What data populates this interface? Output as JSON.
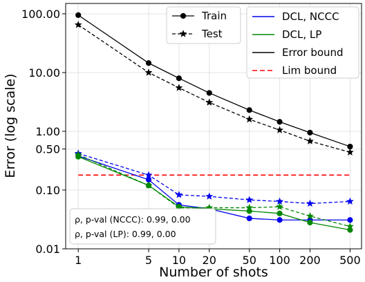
{
  "chart_data": {
    "type": "line",
    "xlabel": "Number of shots",
    "ylabel": "Error (log scale)",
    "x_scale": "log",
    "y_scale": "log",
    "x": [
      1,
      5,
      10,
      20,
      50,
      100,
      200,
      500
    ],
    "x_tick_labels": [
      "1",
      "5",
      "10",
      "20",
      "50",
      "100",
      "200",
      "500"
    ],
    "y_ticks": [
      0.01,
      0.1,
      0.5,
      1,
      10,
      100
    ],
    "y_tick_labels": [
      "0.01",
      "0.10",
      "0.50",
      "1.00",
      "10.00",
      "100.00"
    ],
    "xlim": [
      0.75,
      650
    ],
    "ylim": [
      0.01,
      150
    ],
    "grid": true,
    "series": [
      {
        "key": "err_train",
        "name": "Error bound",
        "color": "#000000",
        "dash": "",
        "marker": "circle",
        "values": [
          95,
          14.5,
          8,
          4.5,
          2.3,
          1.45,
          0.95,
          0.55
        ]
      },
      {
        "key": "err_test",
        "name": "Error bound",
        "color": "#000000",
        "dash": "5,3",
        "marker": "star",
        "values": [
          65,
          10,
          5.5,
          3.1,
          1.6,
          1.05,
          0.68,
          0.44
        ]
      },
      {
        "key": "ncc_train",
        "name": "DCL, NCCC",
        "color": "#0000ee",
        "dash": "",
        "marker": "circle",
        "values": [
          0.38,
          0.15,
          0.056,
          0.048,
          0.033,
          0.031,
          0.031,
          0.031
        ]
      },
      {
        "key": "ncc_test",
        "name": "DCL, NCCC",
        "color": "#0000ee",
        "dash": "5,3",
        "marker": "star",
        "values": [
          0.42,
          0.18,
          0.083,
          0.078,
          0.068,
          0.064,
          0.059,
          0.064
        ]
      },
      {
        "key": "lp_train",
        "name": "DCL, LP",
        "color": "#008800",
        "dash": "",
        "marker": "circle",
        "values": [
          0.37,
          0.12,
          0.052,
          0.048,
          0.044,
          0.04,
          0.028,
          0.021
        ]
      },
      {
        "key": "lp_test",
        "name": "DCL, LP",
        "color": "#008800",
        "dash": "5,3",
        "marker": "star",
        "values": [
          0.4,
          0.12,
          0.05,
          0.05,
          0.05,
          0.052,
          0.036,
          0.024
        ]
      }
    ],
    "hlines": [
      {
        "name": "Lim bound",
        "value": 0.18,
        "color": "#ff0000",
        "dash": "7,4"
      }
    ],
    "legend_markers": {
      "placement": "top-center",
      "entries": [
        {
          "label": "Train",
          "dash": "",
          "marker": "circle"
        },
        {
          "label": "Test",
          "dash": "5,3",
          "marker": "star"
        }
      ]
    },
    "legend_colors": {
      "placement": "top-right",
      "entries": [
        {
          "label": "DCL, NCCC",
          "color": "#0000ee",
          "dash": ""
        },
        {
          "label": "DCL, LP",
          "color": "#008800",
          "dash": ""
        },
        {
          "label": "Error bound",
          "color": "#000000",
          "dash": ""
        },
        {
          "label": "Lim bound",
          "color": "#ff0000",
          "dash": "7,4"
        }
      ]
    },
    "annotation": {
      "placement": "bottom-left",
      "lines": [
        "ρ, p-val (NCCC):  0.99, 0.00",
        "ρ, p-val (LP):  0.99, 0.00"
      ]
    }
  }
}
